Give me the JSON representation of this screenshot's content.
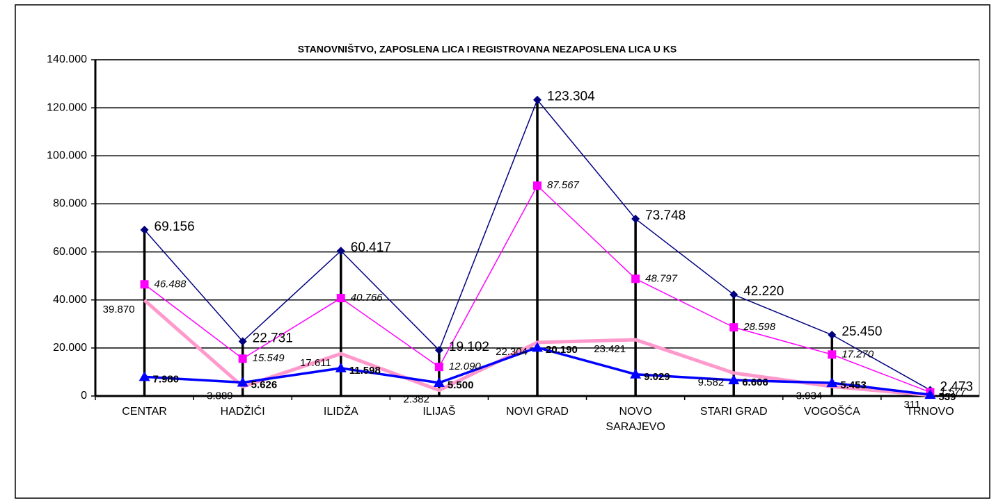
{
  "chart_data": {
    "type": "line",
    "title": "STANOVNIŠTVO, ZAPOSLENA LICA I REGISTROVANA NEZAPOSLENA LICA U KS",
    "categories": [
      "CENTAR",
      "HADŽIĆI",
      "ILIDŽA",
      "ILIJAŠ",
      "NOVI GRAD",
      "NOVO SARAJEVO",
      "STARI GRAD",
      "VOGOŠĆA",
      "TRNOVO"
    ],
    "series": [
      {
        "color": "#000080",
        "marker": "diamond",
        "values": [
          69156,
          22731,
          60417,
          19102,
          123304,
          73748,
          42220,
          25450,
          2473
        ],
        "value_labels": [
          "69.156",
          "22.731",
          "60.417",
          "19.102",
          "123.304",
          "73.748",
          "42.220",
          "25.450",
          "2.473"
        ]
      },
      {
        "color": "#ff00ff",
        "marker": "square",
        "values": [
          46488,
          15549,
          40766,
          12090,
          87567,
          48797,
          28598,
          17270,
          1577
        ],
        "value_labels": [
          "46.488",
          "15.549",
          "40.766",
          "12.090",
          "87.567",
          "48.797",
          "28.598",
          "17.270",
          "1.577"
        ]
      },
      {
        "color": "#ff99cc",
        "marker": "none",
        "values": [
          39870,
          3889,
          17611,
          2382,
          22304,
          23421,
          9582,
          3934,
          311
        ],
        "value_labels": [
          "39.870",
          "3.889",
          "17.611",
          "2.382",
          "22.304",
          "23.421",
          "9.582",
          "3.934",
          "311"
        ]
      },
      {
        "color": "#0000ff",
        "marker": "triangle",
        "values": [
          7980,
          5626,
          11598,
          5500,
          20190,
          9029,
          6606,
          5453,
          539
        ],
        "value_labels": [
          "7.980",
          "5.626",
          "11.598",
          "5.500",
          "20.190",
          "9.029",
          "6.606",
          "5.453",
          "539"
        ]
      }
    ],
    "ylim": [
      0,
      140000
    ],
    "yticks": [
      0,
      {
        "value": 20000,
        "label": "20.000"
      },
      {
        "value": 40000,
        "label": "40.000"
      },
      {
        "value": 60000,
        "label": "60.000"
      },
      {
        "value": 80000,
        "label": "80.000"
      },
      {
        "value": 100000,
        "label": "100.000"
      },
      {
        "value": 120000,
        "label": "120.000"
      },
      {
        "value": 140000,
        "label": "140.000"
      }
    ],
    "grid": true,
    "drop_lines": true
  }
}
